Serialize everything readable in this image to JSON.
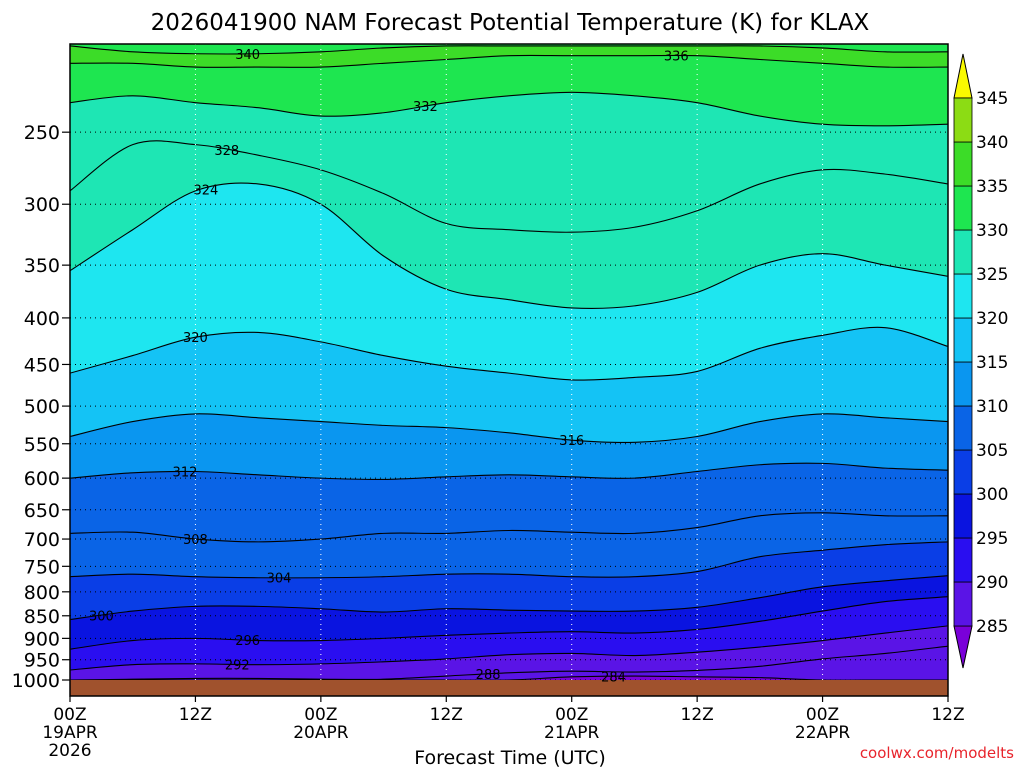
{
  "chart_data": {
    "type": "heatmap",
    "title": "2026041900 NAM Forecast Potential Temperature (K) for KLAX",
    "xlabel": "Forecast Time (UTC)",
    "ylabel": "",
    "credit": "coolwx.com/modelts",
    "x_ticks": [
      {
        "hour": 0,
        "label": "00Z",
        "sub1": "19APR",
        "sub2": "2026"
      },
      {
        "hour": 12,
        "label": "12Z",
        "sub1": "",
        "sub2": ""
      },
      {
        "hour": 24,
        "label": "00Z",
        "sub1": "20APR",
        "sub2": ""
      },
      {
        "hour": 36,
        "label": "12Z",
        "sub1": "",
        "sub2": ""
      },
      {
        "hour": 48,
        "label": "00Z",
        "sub1": "21APR",
        "sub2": ""
      },
      {
        "hour": 60,
        "label": "12Z",
        "sub1": "",
        "sub2": ""
      },
      {
        "hour": 72,
        "label": "00Z",
        "sub1": "22APR",
        "sub2": ""
      },
      {
        "hour": 84,
        "label": "12Z",
        "sub1": "",
        "sub2": ""
      }
    ],
    "xlim": [
      0,
      84
    ],
    "y_ticks": [
      "250",
      "300",
      "350",
      "400",
      "450",
      "500",
      "550",
      "600",
      "650",
      "700",
      "750",
      "800",
      "850",
      "900",
      "950",
      "1000"
    ],
    "y_values": [
      250,
      300,
      350,
      400,
      450,
      500,
      550,
      600,
      650,
      700,
      750,
      800,
      850,
      900,
      950,
      1000
    ],
    "ylim": [
      200,
      1000
    ],
    "y_scale": "log",
    "colorbar": {
      "levels": [
        285,
        290,
        295,
        300,
        305,
        310,
        315,
        320,
        325,
        330,
        335,
        340,
        345
      ],
      "labels": [
        "345",
        "340",
        "335",
        "330",
        "325",
        "320",
        "315",
        "310",
        "305",
        "300",
        "295",
        "290",
        "285"
      ],
      "colors": [
        "#7a00d9",
        "#5a14e6",
        "#2a0ef0",
        "#0a14e0",
        "#0a3ee6",
        "#0a64e6",
        "#0a96f0",
        "#14c3f5",
        "#1ee6f0",
        "#1ee6b4",
        "#1ee650",
        "#3cdc28",
        "#8cdc14",
        "#d2e614",
        "#fafa00"
      ]
    },
    "x_hours": [
      0,
      6,
      12,
      18,
      24,
      30,
      36,
      42,
      48,
      54,
      60,
      66,
      72,
      78,
      84
    ],
    "contours": [
      {
        "value": 284,
        "label": "284",
        "label_hour": 52,
        "pressures": [
          1000,
          1000,
          1000,
          1000,
          1000,
          1000,
          1000,
          1000,
          992,
          990,
          992,
          994,
          1000,
          1000,
          1000
        ]
      },
      {
        "value": 288,
        "label": "288",
        "label_hour": 40,
        "pressures": [
          1000,
          998,
          996,
          996,
          998,
          998,
          990,
          982,
          978,
          980,
          976,
          966,
          948,
          935,
          918
        ]
      },
      {
        "value": 292,
        "label": "292",
        "label_hour": 16,
        "pressures": [
          975,
          962,
          960,
          962,
          960,
          955,
          948,
          938,
          935,
          940,
          932,
          920,
          905,
          888,
          872
        ]
      },
      {
        "value": 296,
        "label": "296",
        "label_hour": 17,
        "pressures": [
          925,
          905,
          900,
          905,
          905,
          900,
          893,
          888,
          885,
          888,
          880,
          862,
          840,
          820,
          810
        ]
      },
      {
        "value": 300,
        "label": "300",
        "label_hour": 3,
        "pressures": [
          858,
          840,
          830,
          830,
          835,
          842,
          835,
          838,
          840,
          840,
          832,
          812,
          790,
          778,
          768
        ]
      },
      {
        "value": 304,
        "label": "304",
        "label_hour": 20,
        "pressures": [
          770,
          765,
          770,
          772,
          772,
          770,
          765,
          765,
          770,
          770,
          760,
          732,
          720,
          710,
          705
        ]
      },
      {
        "value": 308,
        "label": "308",
        "label_hour": 12,
        "pressures": [
          690,
          688,
          700,
          705,
          700,
          690,
          690,
          685,
          688,
          690,
          680,
          660,
          655,
          660,
          660
        ]
      },
      {
        "value": 312,
        "label": "312",
        "label_hour": 11,
        "pressures": [
          600,
          592,
          590,
          595,
          600,
          602,
          598,
          595,
          598,
          600,
          590,
          580,
          578,
          585,
          588
        ]
      },
      {
        "value": 316,
        "label": "316",
        "label_hour": 48,
        "pressures": [
          540,
          520,
          510,
          515,
          520,
          525,
          528,
          535,
          545,
          548,
          540,
          520,
          510,
          515,
          520
        ]
      },
      {
        "value": 320,
        "label": "320",
        "label_hour": 12,
        "pressures": [
          460,
          440,
          420,
          415,
          425,
          440,
          452,
          460,
          468,
          465,
          458,
          432,
          418,
          410,
          430
        ]
      },
      {
        "value": 324,
        "label": "324",
        "label_hour": 13,
        "pressures": [
          355,
          320,
          290,
          285,
          300,
          342,
          372,
          382,
          390,
          388,
          375,
          350,
          340,
          350,
          360
        ]
      },
      {
        "value": 328,
        "label": "328",
        "label_hour": 15,
        "pressures": [
          290,
          258,
          258,
          265,
          275,
          292,
          315,
          320,
          322,
          318,
          305,
          285,
          275,
          278,
          285
        ]
      },
      {
        "value": 332,
        "label": "332",
        "label_hour": 34,
        "pressures": [
          232,
          228,
          232,
          235,
          240,
          238,
          232,
          228,
          226,
          228,
          232,
          240,
          245,
          246,
          245
        ]
      },
      {
        "value": 336,
        "label": "336",
        "label_hour": 58,
        "pressures": [
          210,
          210,
          212,
          212,
          212,
          210,
          208,
          206,
          206,
          206,
          206,
          208,
          210,
          212,
          212
        ]
      },
      {
        "value": 340,
        "label": "340",
        "label_hour": 17,
        "pressures": [
          201,
          204,
          205,
          205,
          204,
          202,
          201,
          201,
          201,
          201,
          201,
          201,
          202,
          204,
          204
        ]
      }
    ]
  }
}
